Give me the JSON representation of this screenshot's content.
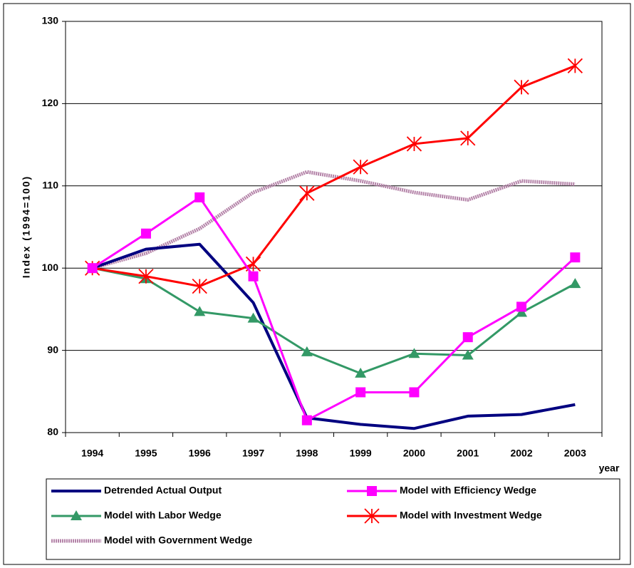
{
  "chart_data": {
    "type": "line",
    "xlabel": "year",
    "ylabel": "Index (1994=100)",
    "categories": [
      "1994",
      "1995",
      "1996",
      "1997",
      "1998",
      "1999",
      "2000",
      "2001",
      "2002",
      "2003"
    ],
    "series": [
      {
        "name": "Detrended Actual Output",
        "color": "#000080",
        "marker": "none",
        "values": [
          100,
          102.3,
          102.9,
          95.8,
          81.8,
          81.0,
          80.5,
          82.0,
          82.2,
          83.4
        ]
      },
      {
        "name": "Model with Efficiency Wedge",
        "color": "#ff00ff",
        "marker": "square",
        "values": [
          100,
          104.2,
          108.6,
          99.0,
          81.5,
          84.9,
          84.9,
          91.6,
          95.3,
          101.3
        ]
      },
      {
        "name": "Model with Labor Wedge",
        "color": "#339966",
        "marker": "triangle",
        "values": [
          100,
          98.7,
          94.7,
          93.9,
          89.8,
          87.2,
          89.6,
          89.4,
          94.6,
          98.1
        ]
      },
      {
        "name": "Model with Investment Wedge",
        "color": "#ff0000",
        "marker": "asterisk",
        "values": [
          100,
          99.0,
          97.8,
          100.5,
          109.1,
          112.3,
          115.1,
          115.8,
          122.0,
          124.6
        ]
      },
      {
        "name": "Model with Government Wedge",
        "color": "#b483a8",
        "marker": "none",
        "values": [
          100,
          101.8,
          104.8,
          109.2,
          111.7,
          110.6,
          109.2,
          108.3,
          110.6,
          110.2
        ]
      }
    ],
    "ylim": [
      80,
      130
    ],
    "yticks": [
      80,
      90,
      100,
      110,
      120,
      130
    ],
    "grid": true,
    "legend": "bottom"
  }
}
